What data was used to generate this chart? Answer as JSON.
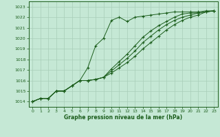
{
  "bg_color": "#c5e8d5",
  "grid_color": "#a8cdb8",
  "line_color": "#1a5c1a",
  "marker_color": "#1a5c1a",
  "xlabel": "Graphe pression niveau de la mer (hPa)",
  "xlabel_color": "#1a5c1a",
  "xlim": [
    -0.5,
    23.5
  ],
  "ylim": [
    1013.5,
    1023.5
  ],
  "yticks": [
    1014,
    1015,
    1016,
    1017,
    1018,
    1019,
    1020,
    1021,
    1022,
    1023
  ],
  "xticks": [
    0,
    1,
    2,
    3,
    4,
    5,
    6,
    7,
    8,
    9,
    10,
    11,
    12,
    13,
    14,
    15,
    16,
    17,
    18,
    19,
    20,
    21,
    22,
    23
  ],
  "series": [
    [
      1014.0,
      1014.3,
      1014.3,
      1015.0,
      1015.0,
      1015.5,
      1016.0,
      1017.2,
      1019.3,
      1020.0,
      1021.7,
      1022.0,
      1021.6,
      1022.0,
      1022.1,
      1022.2,
      1022.3,
      1022.4,
      1022.5,
      1022.5,
      1022.5,
      1022.5,
      1022.6,
      1022.6
    ],
    [
      1014.0,
      1014.3,
      1014.3,
      1015.0,
      1015.0,
      1015.5,
      1016.0,
      1016.0,
      1016.1,
      1016.3,
      1016.7,
      1017.2,
      1017.7,
      1018.3,
      1019.0,
      1019.6,
      1020.2,
      1020.8,
      1021.3,
      1021.7,
      1022.0,
      1022.2,
      1022.5,
      1022.6
    ],
    [
      1014.0,
      1014.3,
      1014.3,
      1015.0,
      1015.0,
      1015.5,
      1016.0,
      1016.0,
      1016.1,
      1016.3,
      1016.9,
      1017.5,
      1018.1,
      1018.8,
      1019.6,
      1020.2,
      1020.8,
      1021.3,
      1021.7,
      1022.0,
      1022.2,
      1022.4,
      1022.5,
      1022.6
    ],
    [
      1014.0,
      1014.3,
      1014.3,
      1015.0,
      1015.0,
      1015.5,
      1016.0,
      1016.0,
      1016.1,
      1016.3,
      1017.1,
      1017.8,
      1018.5,
      1019.3,
      1020.1,
      1020.7,
      1021.2,
      1021.6,
      1022.0,
      1022.3,
      1022.4,
      1022.4,
      1022.5,
      1022.6
    ]
  ]
}
